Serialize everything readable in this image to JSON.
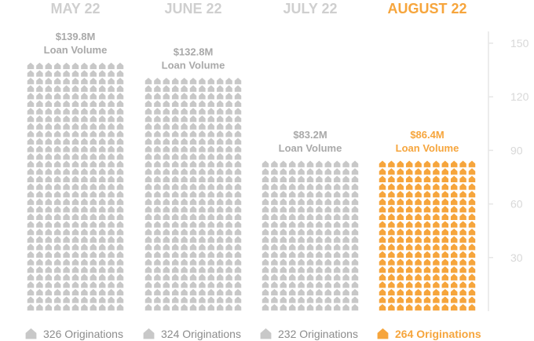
{
  "chart_data": {
    "type": "bar",
    "categories": [
      "MAY 22",
      "JUNE 22",
      "JULY 22",
      "AUGUST 22"
    ],
    "values": [
      139.8,
      132.8,
      83.2,
      86.4
    ],
    "value_labels": [
      "$139.8M",
      "$132.8M",
      "$83.2M",
      "$86.4M"
    ],
    "value_sublabel": "Loan Volume",
    "originations": [
      326,
      324,
      232,
      264
    ],
    "origination_labels": [
      "326 Originations",
      "324 Originations",
      "232 Originations",
      "264 Originations"
    ],
    "y_ticks": [
      30,
      60,
      90,
      120,
      150
    ],
    "ylim": [
      0,
      150
    ],
    "highlight_index": 3,
    "icon": "house-icon",
    "colors": {
      "default": "#c8c8c8",
      "highlight": "#f6a53c",
      "title_default": "#cfcfcf",
      "label_default": "#a9a9a9",
      "footer_default": "#8c8c8c",
      "axis": "#e6e6e6"
    }
  }
}
